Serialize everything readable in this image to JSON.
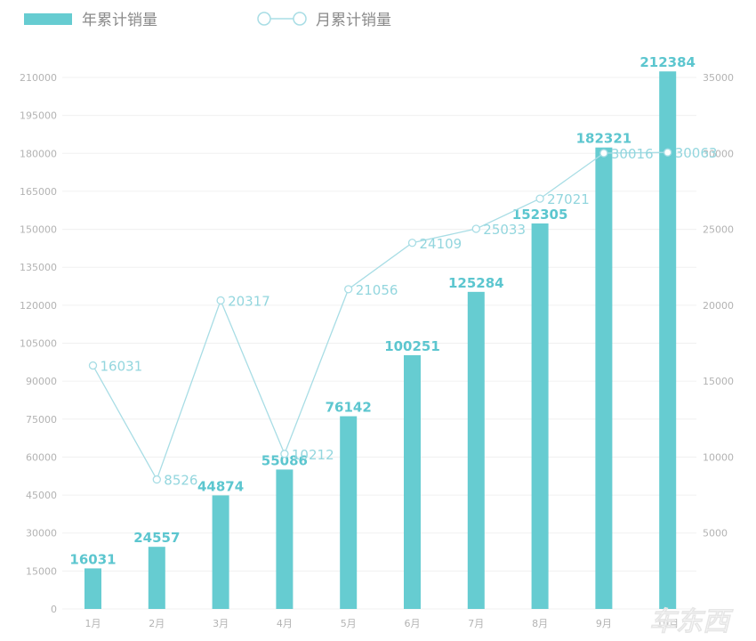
{
  "chart_data": {
    "type": "bar",
    "title": "",
    "xlabel": "",
    "ylabel": "",
    "categories": [
      "1月",
      "2月",
      "3月",
      "4月",
      "5月",
      "6月",
      "7月",
      "8月",
      "9月",
      "10月"
    ],
    "series": [
      {
        "name": "年累计销量",
        "type": "bar",
        "axis": "left",
        "color": "#66CCD1",
        "values": [
          16031,
          24557,
          44874,
          55086,
          76142,
          100251,
          125284,
          152305,
          182321,
          212384
        ]
      },
      {
        "name": "月累计销量",
        "type": "line",
        "axis": "right",
        "color": "#A8DDE5",
        "values": [
          16031,
          8526,
          20317,
          10212,
          21056,
          24109,
          25033,
          27021,
          30016,
          30063
        ]
      }
    ],
    "ylim": [
      0,
      210000
    ],
    "y_ticks": [
      0,
      15000,
      30000,
      45000,
      60000,
      75000,
      90000,
      105000,
      120000,
      135000,
      150000,
      165000,
      180000,
      195000,
      210000
    ],
    "y2lim": [
      0,
      35000
    ],
    "y2_ticks": [
      5000,
      10000,
      15000,
      20000,
      25000,
      30000,
      35000
    ],
    "grid": true,
    "legend_position": "top-left"
  },
  "legend": {
    "bar_label": "年累计销量",
    "line_label": "月累计销量"
  },
  "watermark": "车东西"
}
